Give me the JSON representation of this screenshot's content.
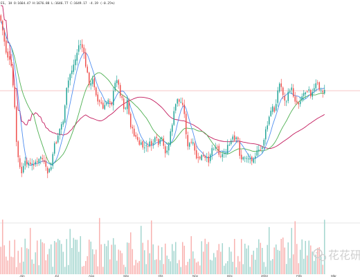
{
  "chart_data": {
    "type": "candlestick",
    "ohlc_text": "ES, 1H  O:1664.47  H:1676.88  L:1646.77  C:1649.17  -4.19 (-0.25%)",
    "x_ticks": [
      "Jun",
      "Jul",
      "Aug",
      "Sep",
      "Oct",
      "Nov",
      "Dec",
      "2022",
      "Feb",
      "Mar"
    ],
    "watermark": "花花研",
    "colors": {
      "up": "#26a69a",
      "down": "#ef5350",
      "vol_up": "#a5d6d0",
      "vol_down": "#f8b3b1",
      "ma_fast": "#4f8ef0",
      "ma_mid": "#4caf50",
      "ma_slow": "#c2185b",
      "ref_line": "#f5b4b4"
    },
    "ref_level": 131,
    "ma_slow_start": [
      8,
      28,
      62,
      97,
      135,
      172,
      190,
      194,
      182,
      165,
      158,
      162,
      174,
      185,
      190,
      193,
      196,
      200,
      206,
      210,
      205,
      192,
      178,
      168,
      160
    ],
    "series": {
      "close": [
        30,
        52,
        75,
        85,
        100,
        140,
        210,
        242,
        250,
        238,
        232,
        240,
        238,
        232,
        238,
        225,
        232,
        245,
        250,
        243,
        215,
        205,
        190,
        180,
        170,
        130,
        110,
        100,
        90,
        75,
        60,
        70,
        90,
        110,
        125,
        115,
        130,
        150,
        148,
        160,
        150,
        140,
        150,
        130,
        110,
        130,
        140,
        160,
        145,
        175,
        190,
        195,
        205,
        210,
        212,
        215,
        208,
        210,
        205,
        202,
        210,
        200,
        215,
        220,
        205,
        180,
        160,
        140,
        150,
        145,
        175,
        215,
        205,
        210,
        225,
        232,
        225,
        228,
        232,
        230,
        215,
        210,
        212,
        220,
        225,
        220,
        215,
        208,
        200,
        205,
        200,
        228,
        230,
        225,
        228,
        230,
        225,
        222,
        220,
        215,
        200,
        185,
        170,
        155,
        160,
        135,
        120,
        130,
        150,
        140,
        125,
        135,
        145,
        150,
        140,
        135,
        130,
        125,
        138,
        130,
        120,
        128,
        135,
        130
      ]
    }
  }
}
